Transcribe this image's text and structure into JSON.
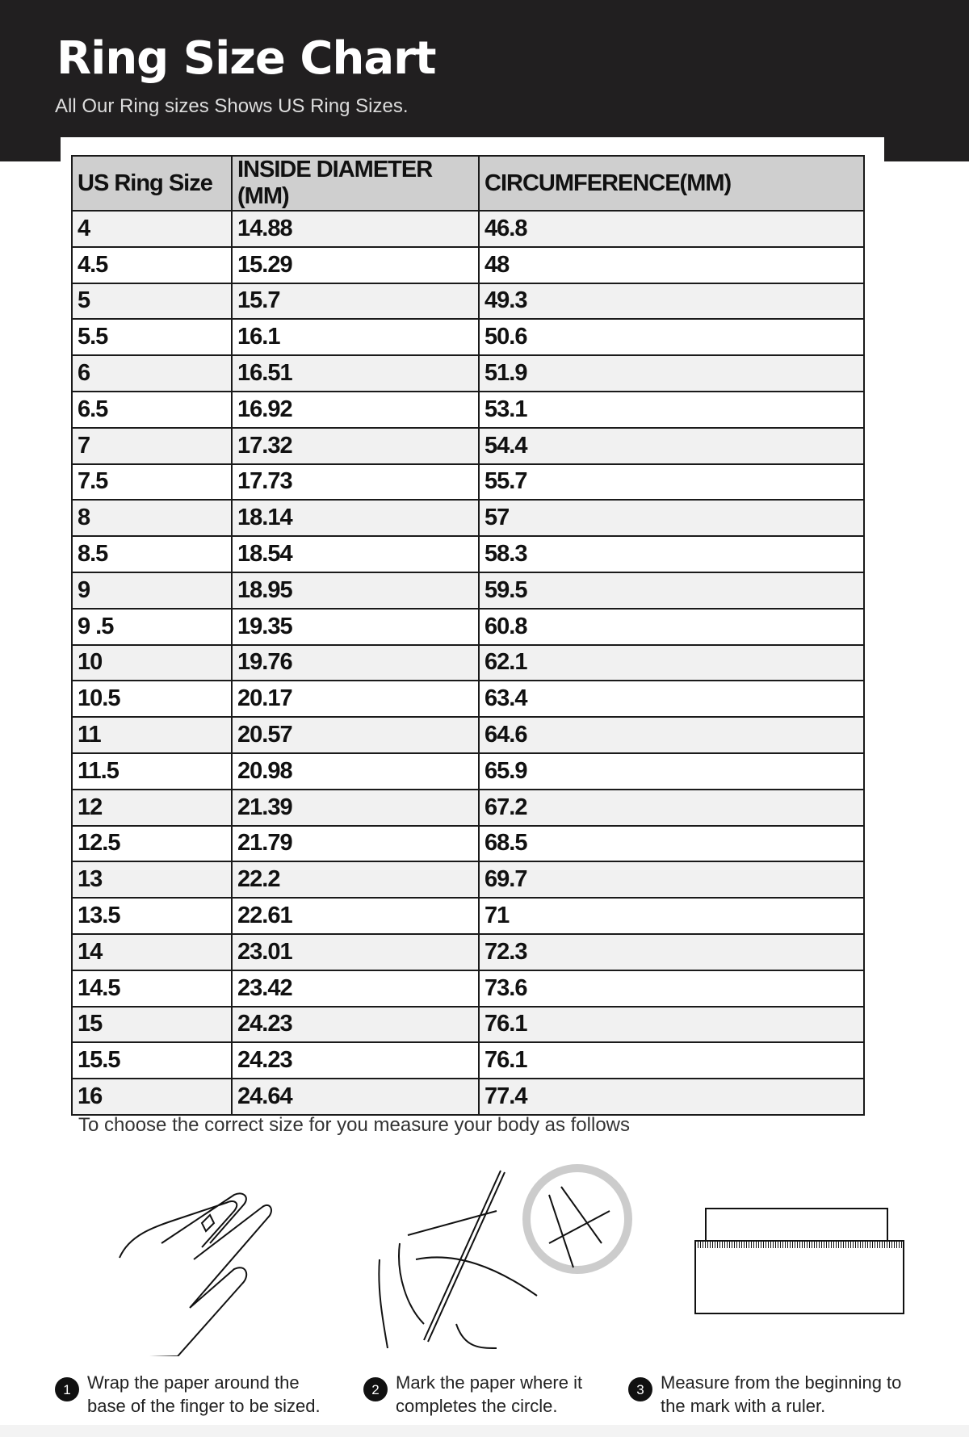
{
  "header": {
    "title": "Ring Size Chart",
    "subtitle": "All Our Ring sizes Shows US Ring Sizes."
  },
  "table": {
    "columns": [
      "US Ring Size",
      "INSIDE DIAMETER (MM)",
      "CIRCUMFERENCE(MM)"
    ],
    "rows": [
      [
        "4",
        "14.88",
        "46.8"
      ],
      [
        "4.5",
        "15.29",
        "48"
      ],
      [
        "5",
        "15.7",
        "49.3"
      ],
      [
        "5.5",
        "16.1",
        "50.6"
      ],
      [
        "6",
        "16.51",
        "51.9"
      ],
      [
        "6.5",
        "16.92",
        "53.1"
      ],
      [
        "7",
        "17.32",
        "54.4"
      ],
      [
        "7.5",
        "17.73",
        "55.7"
      ],
      [
        "8",
        "18.14",
        "57"
      ],
      [
        "8.5",
        "18.54",
        "58.3"
      ],
      [
        "9",
        "18.95",
        "59.5"
      ],
      [
        "9 .5",
        "19.35",
        "60.8"
      ],
      [
        "10",
        "19.76",
        "62.1"
      ],
      [
        "10.5",
        "20.17",
        "63.4"
      ],
      [
        "11",
        "20.57",
        "64.6"
      ],
      [
        "11.5",
        "20.98",
        "65.9"
      ],
      [
        "12",
        "21.39",
        "67.2"
      ],
      [
        "12.5",
        "21.79",
        "68.5"
      ],
      [
        "13",
        "22.2",
        "69.7"
      ],
      [
        "13.5",
        "22.61",
        "71"
      ],
      [
        "14",
        "23.01",
        "72.3"
      ],
      [
        "14.5",
        "23.42",
        "73.6"
      ],
      [
        "15",
        "24.23",
        "76.1"
      ],
      [
        "15.5",
        "24.23",
        "76.1"
      ],
      [
        "16",
        "24.64",
        "77.4"
      ]
    ]
  },
  "instructions": {
    "intro": "To choose the correct size for you measure your body as follows",
    "steps": [
      {
        "num": "1",
        "line1": "Wrap the paper around the",
        "line2": "base of the finger to be sized.",
        "icon": "hand-wrap-icon"
      },
      {
        "num": "2",
        "line1": "Mark the paper where it",
        "line2": "completes the circle.",
        "icon": "pen-mark-icon"
      },
      {
        "num": "3",
        "line1": "Measure from the beginning to",
        "line2": "the mark with a ruler.",
        "icon": "ruler-icon"
      }
    ]
  }
}
